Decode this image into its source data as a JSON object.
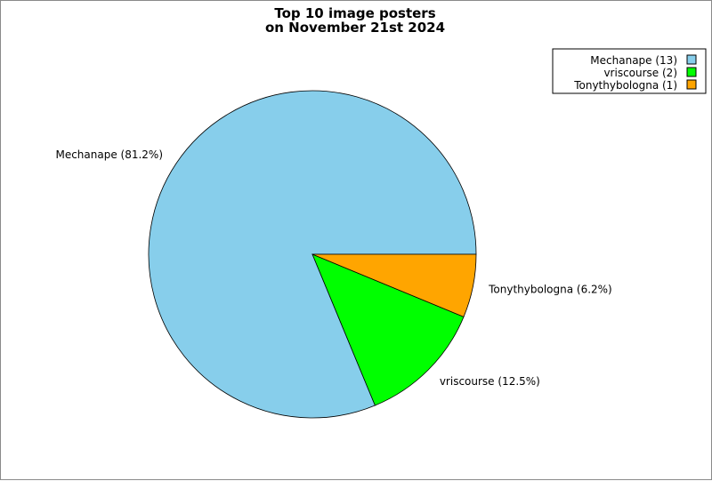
{
  "chart_data": {
    "type": "pie",
    "title_lines": [
      "Top 10 image posters",
      "on November 21st 2024"
    ],
    "legend_position": "top-right",
    "slices": [
      {
        "name": "Mechanape",
        "count": 13,
        "percent": 81.2,
        "color": "#87ceeb",
        "legend_label": "Mechanape (13)",
        "slice_label": "Mechanape (81.2%)"
      },
      {
        "name": "vriscourse",
        "count": 2,
        "percent": 12.5,
        "color": "#00ff00",
        "legend_label": "vriscourse (2)",
        "slice_label": "vriscourse (12.5%)"
      },
      {
        "name": "Tonythybologna",
        "count": 1,
        "percent": 6.2,
        "color": "#ffa500",
        "legend_label": "Tonythybologna (1)",
        "slice_label": "Tonythybologna (6.2%)"
      }
    ]
  }
}
